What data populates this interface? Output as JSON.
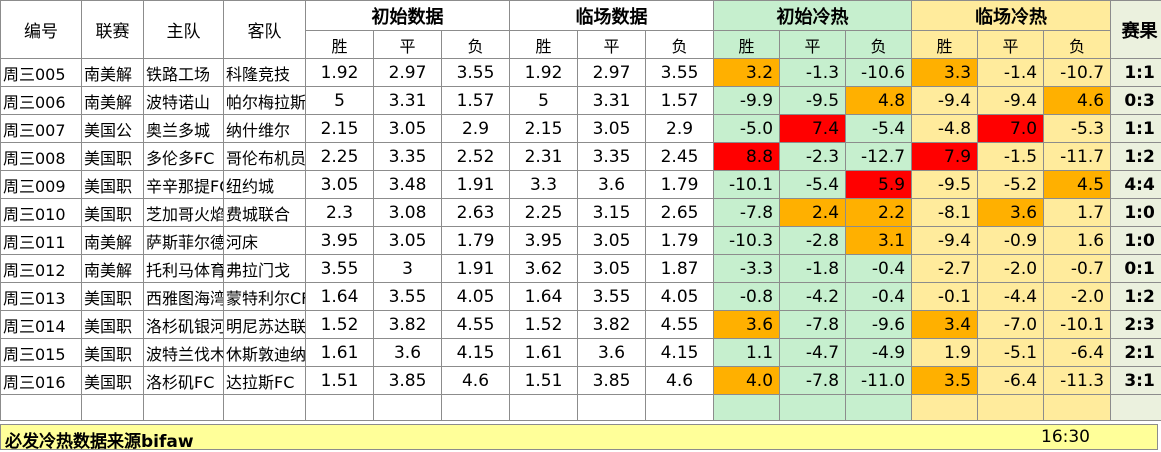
{
  "headers": {
    "id": "编号",
    "league": "联赛",
    "home": "主队",
    "away": "客队",
    "initial_odds": "初始数据",
    "live_odds": "临场数据",
    "initial_heat": "初始冷热",
    "live_heat": "临场冷热",
    "result": "赛果",
    "win": "胜",
    "draw": "平",
    "lose": "负"
  },
  "rows": [
    {
      "id": "周三005",
      "league": "南美解",
      "home": "铁路工场",
      "away": "科隆竞技",
      "io": [
        "1.92",
        "2.97",
        "3.55"
      ],
      "lo": [
        "1.92",
        "2.97",
        "3.55"
      ],
      "ih": [
        "3.2",
        "-1.3",
        "-10.6"
      ],
      "lh": [
        "3.3",
        "-1.4",
        "-10.7"
      ],
      "score": "1:1",
      "ih_hot": [
        "orange",
        "",
        ""
      ],
      "lh_hot": [
        "orange",
        "",
        ""
      ]
    },
    {
      "id": "周三006",
      "league": "南美解",
      "home": "波特诺山",
      "away": "帕尔梅拉斯",
      "io": [
        "5",
        "3.31",
        "1.57"
      ],
      "lo": [
        "5",
        "3.31",
        "1.57"
      ],
      "ih": [
        "-9.9",
        "-9.5",
        "4.8"
      ],
      "lh": [
        "-9.4",
        "-9.4",
        "4.6"
      ],
      "score": "0:3",
      "ih_hot": [
        "",
        "",
        "orange"
      ],
      "lh_hot": [
        "",
        "",
        "orange"
      ]
    },
    {
      "id": "周三007",
      "league": "美国公",
      "home": "奥兰多城",
      "away": "纳什维尔",
      "io": [
        "2.15",
        "3.05",
        "2.9"
      ],
      "lo": [
        "2.15",
        "3.05",
        "2.9"
      ],
      "ih": [
        "-5.0",
        "7.4",
        "-5.4"
      ],
      "lh": [
        "-4.8",
        "7.0",
        "-5.3"
      ],
      "score": "1:1",
      "ih_hot": [
        "",
        "red",
        ""
      ],
      "lh_hot": [
        "",
        "red",
        ""
      ]
    },
    {
      "id": "周三008",
      "league": "美国职",
      "home": "多伦多FC",
      "away": "哥伦布机员",
      "io": [
        "2.25",
        "3.35",
        "2.52"
      ],
      "lo": [
        "2.31",
        "3.35",
        "2.45"
      ],
      "ih": [
        "8.8",
        "-2.3",
        "-12.7"
      ],
      "lh": [
        "7.9",
        "-1.5",
        "-11.7"
      ],
      "score": "1:2",
      "ih_hot": [
        "red",
        "",
        ""
      ],
      "lh_hot": [
        "red",
        "",
        ""
      ]
    },
    {
      "id": "周三009",
      "league": "美国职",
      "home": "辛辛那提FC",
      "away": "纽约城",
      "io": [
        "3.05",
        "3.48",
        "1.91"
      ],
      "lo": [
        "3.3",
        "3.6",
        "1.79"
      ],
      "ih": [
        "-10.1",
        "-5.4",
        "5.9"
      ],
      "lh": [
        "-9.5",
        "-5.2",
        "4.5"
      ],
      "score": "4:4",
      "ih_hot": [
        "",
        "",
        "red"
      ],
      "lh_hot": [
        "",
        "",
        "orange"
      ]
    },
    {
      "id": "周三010",
      "league": "美国职",
      "home": "芝加哥火焰",
      "away": "费城联合",
      "io": [
        "2.3",
        "3.08",
        "2.63"
      ],
      "lo": [
        "2.25",
        "3.15",
        "2.65"
      ],
      "ih": [
        "-7.8",
        "2.4",
        "2.2"
      ],
      "lh": [
        "-8.1",
        "3.6",
        "1.7"
      ],
      "score": "1:0",
      "ih_hot": [
        "",
        "orange",
        "orange"
      ],
      "lh_hot": [
        "",
        "orange",
        ""
      ]
    },
    {
      "id": "周三011",
      "league": "南美解",
      "home": "萨斯菲尔德",
      "away": "河床",
      "io": [
        "3.95",
        "3.05",
        "1.79"
      ],
      "lo": [
        "3.95",
        "3.05",
        "1.79"
      ],
      "ih": [
        "-10.3",
        "-2.8",
        "3.1"
      ],
      "lh": [
        "-9.4",
        "-0.9",
        "1.6"
      ],
      "score": "1:0",
      "ih_hot": [
        "",
        "",
        "orange"
      ],
      "lh_hot": [
        "",
        "",
        ""
      ]
    },
    {
      "id": "周三012",
      "league": "南美解",
      "home": "托利马体育",
      "away": "弗拉门戈",
      "io": [
        "3.55",
        "3",
        "1.91"
      ],
      "lo": [
        "3.62",
        "3.05",
        "1.87"
      ],
      "ih": [
        "-3.3",
        "-1.8",
        "-0.4"
      ],
      "lh": [
        "-2.7",
        "-2.0",
        "-0.7"
      ],
      "score": "0:1",
      "ih_hot": [
        "",
        "",
        ""
      ],
      "lh_hot": [
        "",
        "",
        ""
      ]
    },
    {
      "id": "周三013",
      "league": "美国职",
      "home": "西雅图海湾人",
      "away": "蒙特利尔CF",
      "io": [
        "1.64",
        "3.55",
        "4.05"
      ],
      "lo": [
        "1.64",
        "3.55",
        "4.05"
      ],
      "ih": [
        "-0.8",
        "-4.2",
        "-0.4"
      ],
      "lh": [
        "-0.1",
        "-4.4",
        "-2.0"
      ],
      "score": "1:2",
      "ih_hot": [
        "",
        "",
        ""
      ],
      "lh_hot": [
        "",
        "",
        ""
      ]
    },
    {
      "id": "周三014",
      "league": "美国职",
      "home": "洛杉矶银河",
      "away": "明尼苏达联",
      "io": [
        "1.52",
        "3.82",
        "4.55"
      ],
      "lo": [
        "1.52",
        "3.82",
        "4.55"
      ],
      "ih": [
        "3.6",
        "-7.8",
        "-9.6"
      ],
      "lh": [
        "3.4",
        "-7.0",
        "-10.1"
      ],
      "score": "2:3",
      "ih_hot": [
        "orange",
        "",
        ""
      ],
      "lh_hot": [
        "orange",
        "",
        ""
      ]
    },
    {
      "id": "周三015",
      "league": "美国职",
      "home": "波特兰伐木者",
      "away": "休斯敦迪纳摩",
      "io": [
        "1.61",
        "3.6",
        "4.15"
      ],
      "lo": [
        "1.61",
        "3.6",
        "4.15"
      ],
      "ih": [
        "1.1",
        "-4.7",
        "-4.9"
      ],
      "lh": [
        "1.9",
        "-5.1",
        "-6.4"
      ],
      "score": "2:1",
      "ih_hot": [
        "",
        "",
        ""
      ],
      "lh_hot": [
        "",
        "",
        ""
      ]
    },
    {
      "id": "周三016",
      "league": "美国职",
      "home": "洛杉矶FC",
      "away": "达拉斯FC",
      "io": [
        "1.51",
        "3.85",
        "4.6"
      ],
      "lo": [
        "1.51",
        "3.85",
        "4.6"
      ],
      "ih": [
        "4.0",
        "-7.8",
        "-11.0"
      ],
      "lh": [
        "3.5",
        "-6.4",
        "-11.3"
      ],
      "score": "3:1",
      "ih_hot": [
        "orange",
        "",
        ""
      ],
      "lh_hot": [
        "orange",
        "",
        ""
      ]
    }
  ],
  "footer": {
    "note": "必发冷热数据来源bifaw",
    "time": "16:30"
  },
  "colors": {
    "initial_heat_bg": "#c6efce",
    "live_heat_bg": "#ffeb9c",
    "hot_orange": "#ffb000",
    "hot_red": "#ff0000",
    "footer_bg": "#ffff99"
  }
}
